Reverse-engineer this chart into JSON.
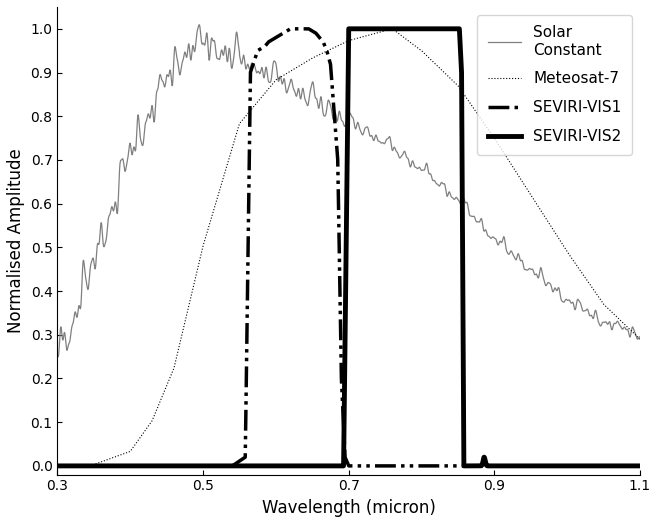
{
  "xlabel": "Wavelength (micron)",
  "ylabel": "Normalised Amplitude",
  "xlim": [
    0.3,
    1.1
  ],
  "ylim": [
    -0.02,
    1.05
  ],
  "xticks": [
    0.3,
    0.5,
    0.7,
    0.9,
    1.1
  ],
  "yticks": [
    0.0,
    0.1,
    0.2,
    0.3,
    0.4,
    0.5,
    0.6,
    0.7,
    0.8,
    0.9,
    1.0
  ],
  "background_color": "#ffffff",
  "solar_color": "#808080",
  "solar_linewidth": 0.9,
  "met7_color": "#000000",
  "met7_linewidth": 0.8,
  "vis1_color": "#000000",
  "vis1_linewidth": 2.5,
  "vis2_color": "#000000",
  "vis2_linewidth": 3.5,
  "legend_fontsize": 11,
  "axis_fontsize": 12
}
